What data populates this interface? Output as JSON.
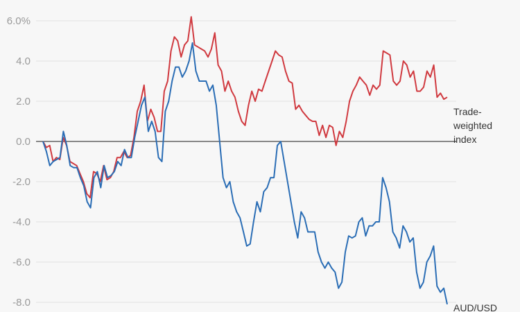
{
  "chart_data": {
    "type": "line",
    "title": "",
    "xlabel": "",
    "ylabel": "",
    "ylim": [
      -8,
      6
    ],
    "y_ticks": [
      "6.0%",
      "4.0",
      "2.0",
      "0.0",
      "-2.0",
      "-4.0",
      "-6.0",
      "-8.0"
    ],
    "y_tick_values": [
      6,
      4,
      2,
      0,
      -2,
      -4,
      -6,
      -8
    ],
    "grid": true,
    "zero_line": true,
    "series": [
      {
        "name": "Trade-weighted index",
        "label_lines": [
          "Trade-",
          "weighted",
          "index"
        ],
        "color": "#d0393f",
        "values": [
          0,
          -0.3,
          -0.2,
          -1.0,
          -0.8,
          -0.9,
          0.2,
          -0.2,
          -1.0,
          -1.1,
          -1.2,
          -1.6,
          -2.0,
          -2.6,
          -2.8,
          -1.5,
          -1.6,
          -2.0,
          -1.2,
          -1.9,
          -1.8,
          -1.5,
          -0.8,
          -0.8,
          -0.5,
          -0.8,
          -0.7,
          0.2,
          1.5,
          2.0,
          2.8,
          1.0,
          1.6,
          1.2,
          0.5,
          0.5,
          2.5,
          3.0,
          4.5,
          5.2,
          5.0,
          4.2,
          4.8,
          5.0,
          6.2,
          4.8,
          4.7,
          4.6,
          4.5,
          4.2,
          4.6,
          5.4,
          3.8,
          3.5,
          2.5,
          3.0,
          2.5,
          2.2,
          1.5,
          1.0,
          0.8,
          1.8,
          2.5,
          2.0,
          2.6,
          2.5,
          3.0,
          3.5,
          4.0,
          4.5,
          4.3,
          4.2,
          3.5,
          3.0,
          2.9,
          1.6,
          1.8,
          1.5,
          1.3,
          1.1,
          1.0,
          1.0,
          0.3,
          0.8,
          0.2,
          0.8,
          0.7,
          -0.2,
          0.5,
          0.2,
          1.0,
          2.0,
          2.5,
          2.8,
          3.2,
          3.0,
          2.8,
          2.3,
          2.8,
          2.6,
          2.8,
          4.5,
          4.4,
          4.3,
          3.0,
          2.8,
          3.0,
          4.0,
          3.8,
          3.2,
          3.5,
          2.5,
          2.5,
          2.7,
          3.5,
          3.2,
          3.8,
          2.2,
          2.4,
          2.1,
          2.2
        ]
      },
      {
        "name": "AUD/USD",
        "label_lines": [
          "AUD/USD"
        ],
        "color": "#2a6db5",
        "values": [
          0,
          -0.5,
          -1.2,
          -1.0,
          -0.9,
          -0.8,
          0.5,
          -0.2,
          -1.2,
          -1.3,
          -1.3,
          -1.8,
          -2.2,
          -3.0,
          -3.3,
          -1.8,
          -1.5,
          -2.3,
          -1.2,
          -1.8,
          -1.7,
          -1.5,
          -1.0,
          -1.2,
          -0.4,
          -0.8,
          -0.8,
          0.2,
          1.0,
          1.8,
          2.2,
          0.5,
          1.0,
          0.5,
          -0.8,
          -1.0,
          1.5,
          2.0,
          3.0,
          3.7,
          3.7,
          3.2,
          3.5,
          4.0,
          4.9,
          3.5,
          3.0,
          3.0,
          3.0,
          2.5,
          2.8,
          1.8,
          0.0,
          -1.8,
          -2.3,
          -2.0,
          -3.0,
          -3.5,
          -3.8,
          -4.5,
          -5.2,
          -5.1,
          -4.0,
          -3.0,
          -3.5,
          -2.5,
          -2.3,
          -1.8,
          -1.8,
          -0.2,
          0.0,
          -1.0,
          -2.0,
          -3.0,
          -4.0,
          -4.8,
          -3.5,
          -3.8,
          -4.5,
          -4.5,
          -4.5,
          -5.5,
          -6.0,
          -6.3,
          -6.0,
          -6.3,
          -6.5,
          -7.3,
          -7.0,
          -5.5,
          -4.7,
          -4.8,
          -4.7,
          -4.0,
          -3.8,
          -4.7,
          -4.2,
          -4.2,
          -4.0,
          -4.0,
          -1.8,
          -2.3,
          -3.0,
          -4.5,
          -4.8,
          -5.3,
          -4.2,
          -4.5,
          -5.0,
          -4.8,
          -6.5,
          -7.3,
          -7.0,
          -6.0,
          -5.7,
          -5.2,
          -7.2,
          -7.5,
          -7.3,
          -8.1
        ]
      }
    ]
  }
}
